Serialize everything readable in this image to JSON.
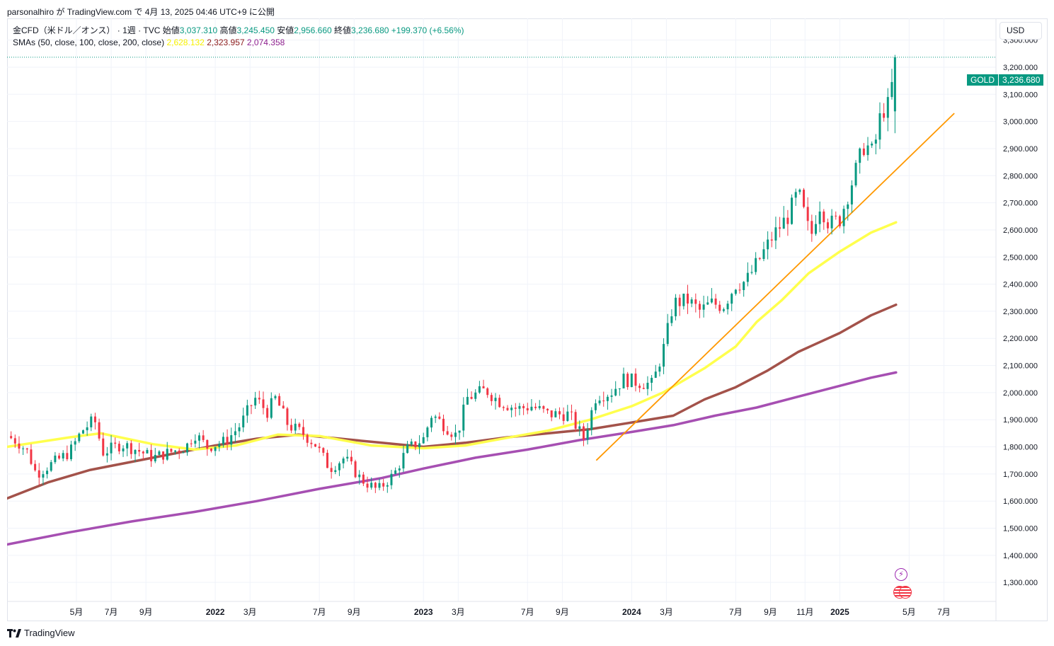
{
  "header": {
    "publish_line": "parsonalhiro が TradingView.com で 4月 13, 2025 04:46 UTC+9 に公開"
  },
  "legend": {
    "symbol_label": "金CFD（米ドル／オンス） · 1週 · TVC",
    "open_label": "始値",
    "open_value": "3,037.310",
    "high_label": "高値",
    "high_value": "3,245.450",
    "low_label": "安値",
    "low_value": "2,956.660",
    "close_label": "終値",
    "close_value": "3,236.680",
    "change": "+199.370 (+6.56%)",
    "sma_label": "SMAs (50, close, 100, close, 200, close)",
    "sma50_value": "2,628.132",
    "sma100_value": "2,323.957",
    "sma200_value": "2,074.358"
  },
  "currency_button": "USD",
  "price_tag": {
    "symbol": "GOLD",
    "price": "3,236.680"
  },
  "footer": {
    "brand": "TradingView"
  },
  "colors": {
    "up": "#089981",
    "down": "#f23645",
    "sma50": "#ffff4d",
    "sma100": "#a3524a",
    "sma200": "#a64fb2",
    "trendline": "#ff9800",
    "grid": "#f0f3fa"
  },
  "chart_data": {
    "type": "candlestick",
    "symbol": "GOLD",
    "interval": "1W",
    "y_axis": {
      "range": [
        1230,
        3380
      ],
      "ticks": [
        1300,
        1400,
        1500,
        1600,
        1700,
        1800,
        1900,
        2000,
        2100,
        2200,
        2300,
        2400,
        2500,
        2600,
        2700,
        2800,
        2900,
        3000,
        3100,
        3200,
        3300
      ],
      "tick_labels": [
        "1,300.000",
        "1,400.000",
        "1,500.000",
        "1,600.000",
        "1,700.000",
        "1,800.000",
        "1,900.000",
        "2,000.000",
        "2,100.000",
        "2,200.000",
        "2,300.000",
        "2,400.000",
        "2,500.000",
        "2,600.000",
        "2,700.000",
        "2,800.000",
        "2,900.000",
        "3,000.000",
        "3,100.000",
        "3,200.000",
        "3,300.000"
      ]
    },
    "x_axis": {
      "range": [
        2021.0,
        2025.75
      ],
      "ticks": [
        {
          "t": 2021.333,
          "label": "5月",
          "bold": false
        },
        {
          "t": 2021.5,
          "label": "7月",
          "bold": false
        },
        {
          "t": 2021.667,
          "label": "9月",
          "bold": false
        },
        {
          "t": 2022.0,
          "label": "2022",
          "bold": true
        },
        {
          "t": 2022.167,
          "label": "3月",
          "bold": false
        },
        {
          "t": 2022.5,
          "label": "7月",
          "bold": false
        },
        {
          "t": 2022.667,
          "label": "9月",
          "bold": false
        },
        {
          "t": 2023.0,
          "label": "2023",
          "bold": true
        },
        {
          "t": 2023.167,
          "label": "3月",
          "bold": false
        },
        {
          "t": 2023.5,
          "label": "7月",
          "bold": false
        },
        {
          "t": 2023.667,
          "label": "9月",
          "bold": false
        },
        {
          "t": 2024.0,
          "label": "2024",
          "bold": true
        },
        {
          "t": 2024.167,
          "label": "3月",
          "bold": false
        },
        {
          "t": 2024.5,
          "label": "7月",
          "bold": false
        },
        {
          "t": 2024.667,
          "label": "9月",
          "bold": false
        },
        {
          "t": 2024.833,
          "label": "11月",
          "bold": false
        },
        {
          "t": 2025.0,
          "label": "2025",
          "bold": true
        },
        {
          "t": 2025.333,
          "label": "5月",
          "bold": false
        },
        {
          "t": 2025.5,
          "label": "7月",
          "bold": false
        }
      ]
    },
    "price_anchors": [
      [
        2021.0,
        1840
      ],
      [
        2021.05,
        1820
      ],
      [
        2021.1,
        1780
      ],
      [
        2021.14,
        1700
      ],
      [
        2021.2,
        1730
      ],
      [
        2021.3,
        1780
      ],
      [
        2021.36,
        1860
      ],
      [
        2021.42,
        1900
      ],
      [
        2021.46,
        1780
      ],
      [
        2021.55,
        1810
      ],
      [
        2021.62,
        1790
      ],
      [
        2021.7,
        1760
      ],
      [
        2021.78,
        1780
      ],
      [
        2021.86,
        1800
      ],
      [
        2021.9,
        1850
      ],
      [
        2021.96,
        1800
      ],
      [
        2022.05,
        1820
      ],
      [
        2022.12,
        1880
      ],
      [
        2022.19,
        1980
      ],
      [
        2022.25,
        1930
      ],
      [
        2022.29,
        1980
      ],
      [
        2022.35,
        1880
      ],
      [
        2022.42,
        1850
      ],
      [
        2022.48,
        1810
      ],
      [
        2022.55,
        1720
      ],
      [
        2022.62,
        1760
      ],
      [
        2022.7,
        1680
      ],
      [
        2022.78,
        1640
      ],
      [
        2022.86,
        1700
      ],
      [
        2022.92,
        1790
      ],
      [
        2023.0,
        1830
      ],
      [
        2023.04,
        1920
      ],
      [
        2023.1,
        1880
      ],
      [
        2023.16,
        1840
      ],
      [
        2023.21,
        1980
      ],
      [
        2023.3,
        2010
      ],
      [
        2023.36,
        1970
      ],
      [
        2023.45,
        1940
      ],
      [
        2023.52,
        1950
      ],
      [
        2023.6,
        1920
      ],
      [
        2023.7,
        1920
      ],
      [
        2023.77,
        1830
      ],
      [
        2023.83,
        1990
      ],
      [
        2023.9,
        2000
      ],
      [
        2023.96,
        2050
      ],
      [
        2024.02,
        2040
      ],
      [
        2024.1,
        2030
      ],
      [
        2024.16,
        2180
      ],
      [
        2024.2,
        2330
      ],
      [
        2024.27,
        2340
      ],
      [
        2024.33,
        2300
      ],
      [
        2024.38,
        2330
      ],
      [
        2024.44,
        2320
      ],
      [
        2024.5,
        2400
      ],
      [
        2024.55,
        2410
      ],
      [
        2024.62,
        2500
      ],
      [
        2024.68,
        2580
      ],
      [
        2024.75,
        2650
      ],
      [
        2024.8,
        2740
      ],
      [
        2024.86,
        2570
      ],
      [
        2024.9,
        2700
      ],
      [
        2024.95,
        2620
      ],
      [
        2025.0,
        2640
      ],
      [
        2025.06,
        2780
      ],
      [
        2025.12,
        2920
      ],
      [
        2025.16,
        2880
      ],
      [
        2025.2,
        3040
      ],
      [
        2025.24,
        3060
      ],
      [
        2025.265,
        3236.68
      ]
    ],
    "last_candle": {
      "open": 3037.31,
      "high": 3245.45,
      "low": 2956.66,
      "close": 3236.68
    },
    "sma50": [
      [
        2021.0,
        1800
      ],
      [
        2021.3,
        1835
      ],
      [
        2021.45,
        1850
      ],
      [
        2021.7,
        1810
      ],
      [
        2021.9,
        1790
      ],
      [
        2022.1,
        1805
      ],
      [
        2022.3,
        1845
      ],
      [
        2022.5,
        1840
      ],
      [
        2022.75,
        1805
      ],
      [
        2023.0,
        1795
      ],
      [
        2023.2,
        1805
      ],
      [
        2023.45,
        1840
      ],
      [
        2023.6,
        1860
      ],
      [
        2023.8,
        1900
      ],
      [
        2024.0,
        1950
      ],
      [
        2024.15,
        2000
      ],
      [
        2024.35,
        2090
      ],
      [
        2024.5,
        2170
      ],
      [
        2024.6,
        2260
      ],
      [
        2024.72,
        2340
      ],
      [
        2024.85,
        2440
      ],
      [
        2025.0,
        2520
      ],
      [
        2025.15,
        2590
      ],
      [
        2025.27,
        2628.132
      ]
    ],
    "sma100": [
      [
        2021.0,
        1610
      ],
      [
        2021.2,
        1670
      ],
      [
        2021.4,
        1715
      ],
      [
        2021.6,
        1745
      ],
      [
        2021.8,
        1775
      ],
      [
        2022.0,
        1805
      ],
      [
        2022.2,
        1830
      ],
      [
        2022.4,
        1845
      ],
      [
        2022.6,
        1830
      ],
      [
        2022.8,
        1815
      ],
      [
        2023.0,
        1800
      ],
      [
        2023.2,
        1815
      ],
      [
        2023.4,
        1835
      ],
      [
        2023.6,
        1850
      ],
      [
        2023.8,
        1865
      ],
      [
        2024.0,
        1890
      ],
      [
        2024.2,
        1915
      ],
      [
        2024.35,
        1975
      ],
      [
        2024.5,
        2020
      ],
      [
        2024.65,
        2080
      ],
      [
        2024.8,
        2150
      ],
      [
        2025.0,
        2220
      ],
      [
        2025.15,
        2285
      ],
      [
        2025.27,
        2323.957
      ]
    ],
    "sma200": [
      [
        2021.0,
        1440
      ],
      [
        2021.3,
        1485
      ],
      [
        2021.6,
        1525
      ],
      [
        2021.9,
        1560
      ],
      [
        2022.2,
        1600
      ],
      [
        2022.5,
        1645
      ],
      [
        2022.8,
        1685
      ],
      [
        2023.0,
        1720
      ],
      [
        2023.25,
        1760
      ],
      [
        2023.5,
        1790
      ],
      [
        2023.75,
        1825
      ],
      [
        2024.0,
        1855
      ],
      [
        2024.2,
        1880
      ],
      [
        2024.4,
        1915
      ],
      [
        2024.6,
        1945
      ],
      [
        2024.8,
        1985
      ],
      [
        2025.0,
        2025
      ],
      [
        2025.15,
        2055
      ],
      [
        2025.27,
        2074.358
      ]
    ],
    "trendline": {
      "start": [
        2023.83,
        1750
      ],
      "end": [
        2025.55,
        3030
      ]
    }
  }
}
